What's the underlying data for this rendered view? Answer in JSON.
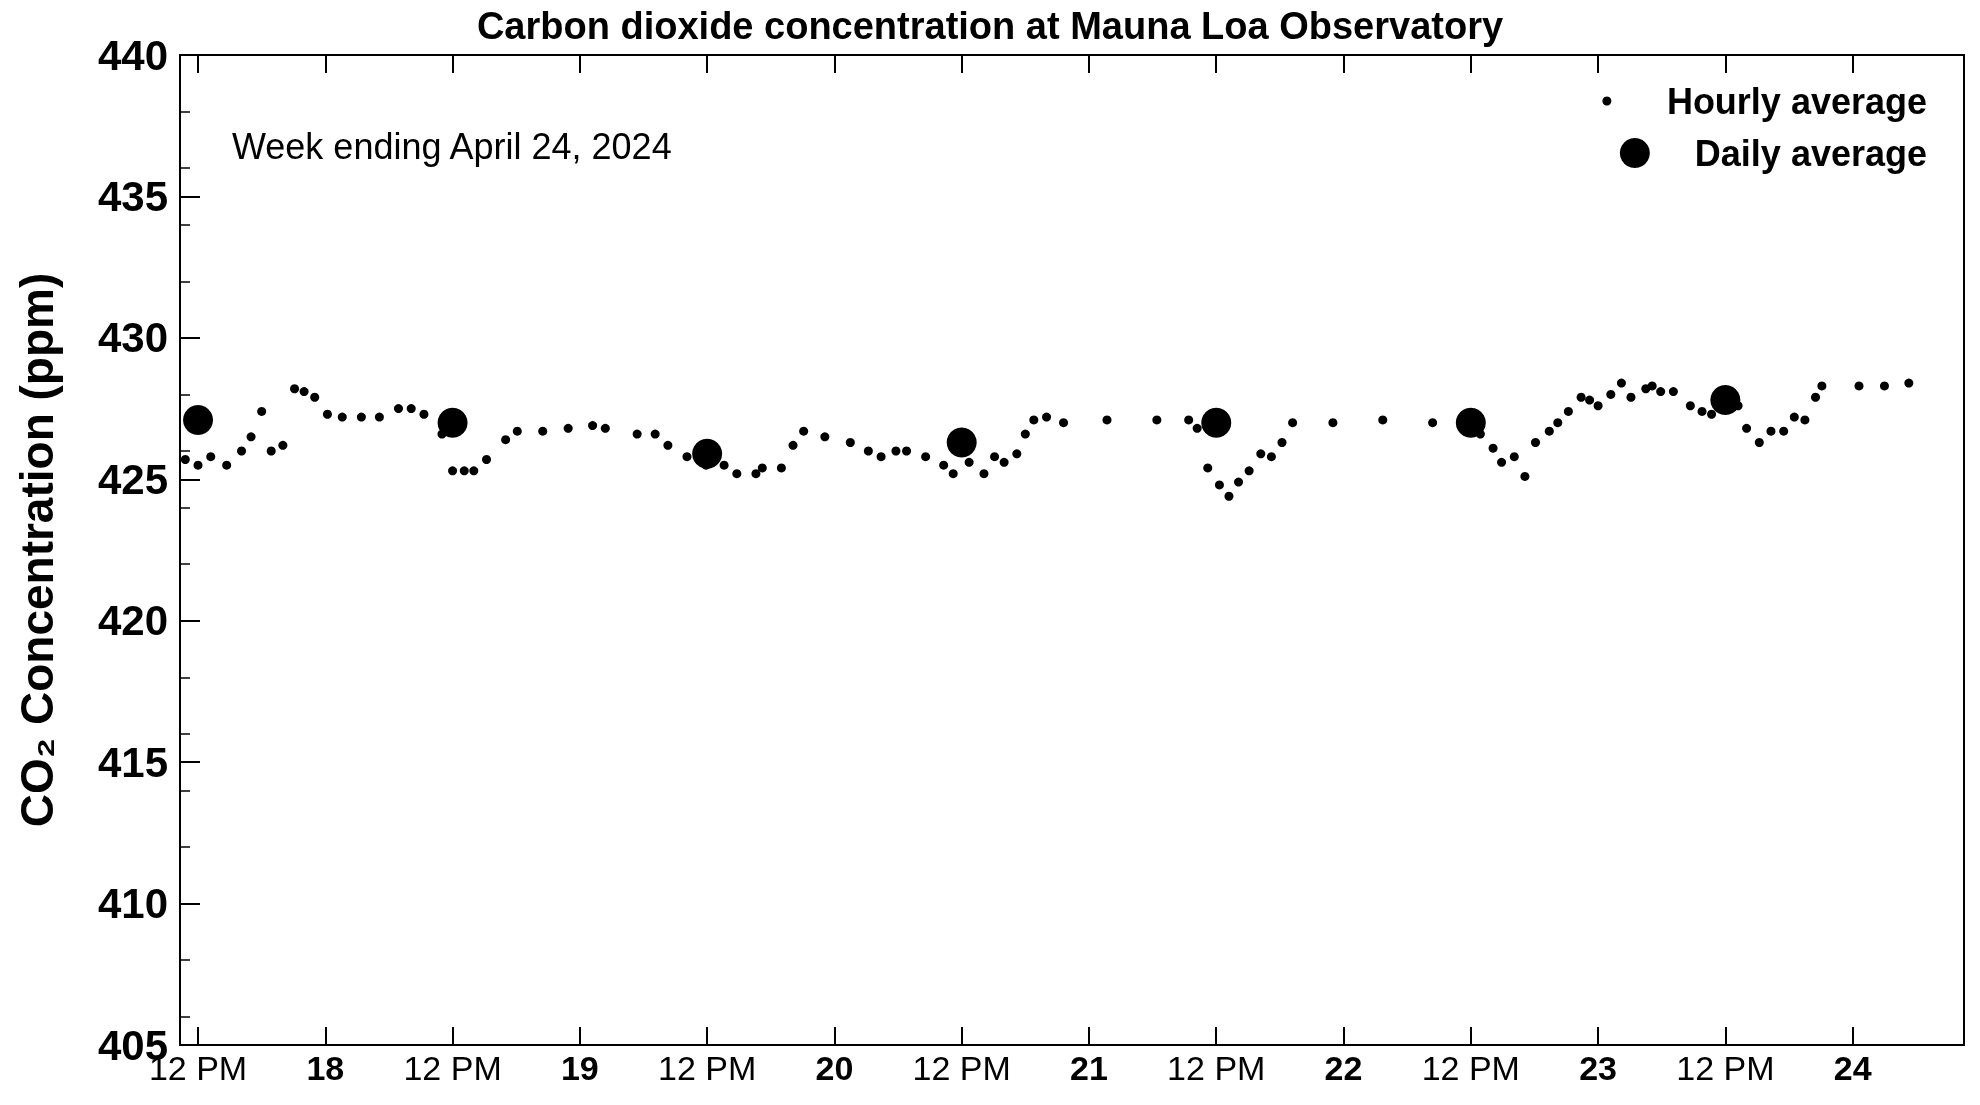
{
  "chart_data": {
    "type": "scatter",
    "title": "Carbon dioxide concentration at Mauna Loa Observatory",
    "ylabel": "CO₂ Concentration (ppm)",
    "annotations": [
      "Week ending April 24, 2024"
    ],
    "xlim": [
      "2024-04-17T10:18",
      "2024-04-24T10:30"
    ],
    "xticks": [
      {
        "value": "2024-04-17T12:00",
        "label": "12 PM"
      },
      {
        "value": "2024-04-18",
        "label": "18"
      },
      {
        "value": "2024-04-18T12:00",
        "label": "12 PM"
      },
      {
        "value": "2024-04-19",
        "label": "19"
      },
      {
        "value": "2024-04-19T12:00",
        "label": "12 PM"
      },
      {
        "value": "2024-04-20",
        "label": "20"
      },
      {
        "value": "2024-04-20T12:00",
        "label": "12 PM"
      },
      {
        "value": "2024-04-21",
        "label": "21"
      },
      {
        "value": "2024-04-21T12:00",
        "label": "12 PM"
      },
      {
        "value": "2024-04-22",
        "label": "22"
      },
      {
        "value": "2024-04-22T12:00",
        "label": "12 PM"
      },
      {
        "value": "2024-04-23",
        "label": "23"
      },
      {
        "value": "2024-04-23T12:00",
        "label": "12 PM"
      },
      {
        "value": "2024-04-24",
        "label": "24"
      }
    ],
    "ylim": [
      405,
      440
    ],
    "yticks": [
      405,
      410,
      415,
      420,
      425,
      430,
      435,
      440
    ],
    "grid": false,
    "legend": "top right",
    "marker": "circle",
    "series": [
      {
        "name": "Hourly average",
        "color": "#000000",
        "x": [
          "2024-04-17T10:48",
          "2024-04-17T12:00",
          "2024-04-17T13:12",
          "2024-04-17T14:42",
          "2024-04-17T16:06",
          "2024-04-17T17:00",
          "2024-04-17T18:00",
          "2024-04-17T18:54",
          "2024-04-17T20:00",
          "2024-04-17T21:06",
          "2024-04-17T22:00",
          "2024-04-17T23:00",
          "2024-04-18T00:12",
          "2024-04-18T01:36",
          "2024-04-18T03:24",
          "2024-04-18T05:06",
          "2024-04-18T06:54",
          "2024-04-18T08:06",
          "2024-04-18T09:18",
          "2024-04-18T11:00",
          "2024-04-18T12:00",
          "2024-04-18T13:06",
          "2024-04-18T14:00",
          "2024-04-18T15:12",
          "2024-04-18T17:00",
          "2024-04-18T18:06",
          "2024-04-18T20:30",
          "2024-04-18T22:54",
          "2024-04-19T01:12",
          "2024-04-19T02:24",
          "2024-04-19T05:24",
          "2024-04-19T07:06",
          "2024-04-19T08:18",
          "2024-04-19T10:06",
          "2024-04-19T11:54",
          "2024-04-19T13:36",
          "2024-04-19T14:48",
          "2024-04-19T16:36",
          "2024-04-19T17:12",
          "2024-04-19T19:00",
          "2024-04-19T20:06",
          "2024-04-19T21:06",
          "2024-04-19T23:06",
          "2024-04-20T01:30",
          "2024-04-20T03:12",
          "2024-04-20T04:24",
          "2024-04-20T05:48",
          "2024-04-20T06:48",
          "2024-04-20T08:36",
          "2024-04-20T10:18",
          "2024-04-20T11:12",
          "2024-04-20T12:42",
          "2024-04-20T14:06",
          "2024-04-20T15:06",
          "2024-04-20T16:00",
          "2024-04-20T17:12",
          "2024-04-20T18:00",
          "2024-04-20T18:48",
          "2024-04-20T20:00",
          "2024-04-20T21:36",
          "2024-04-21T01:42",
          "2024-04-21T06:24",
          "2024-04-21T09:24",
          "2024-04-21T10:12",
          "2024-04-21T11:12",
          "2024-04-21T12:18",
          "2024-04-21T13:12",
          "2024-04-21T14:06",
          "2024-04-21T15:06",
          "2024-04-21T16:12",
          "2024-04-21T17:12",
          "2024-04-21T18:12",
          "2024-04-21T19:12",
          "2024-04-21T23:00",
          "2024-04-22T03:42",
          "2024-04-22T08:24",
          "2024-04-22T12:54",
          "2024-04-22T14:06",
          "2024-04-22T14:54",
          "2024-04-22T16:06",
          "2024-04-22T17:06",
          "2024-04-22T18:06",
          "2024-04-22T19:24",
          "2024-04-22T20:12",
          "2024-04-22T21:12",
          "2024-04-22T22:24",
          "2024-04-22T23:12",
          "2024-04-23T00:00",
          "2024-04-23T01:12",
          "2024-04-23T02:12",
          "2024-04-23T03:06",
          "2024-04-23T04:30",
          "2024-04-23T05:06",
          "2024-04-23T05:54",
          "2024-04-23T07:06",
          "2024-04-23T08:42",
          "2024-04-23T09:48",
          "2024-04-23T10:42",
          "2024-04-23T13:12",
          "2024-04-23T14:00",
          "2024-04-23T15:12",
          "2024-04-23T16:18",
          "2024-04-23T17:30",
          "2024-04-23T18:30",
          "2024-04-23T19:30",
          "2024-04-23T20:30",
          "2024-04-23T21:06",
          "2024-04-24T00:36",
          "2024-04-24T03:00",
          "2024-04-24T05:18"
        ],
        "values": [
          425.7,
          425.5,
          425.8,
          425.5,
          426.0,
          426.5,
          427.4,
          426.0,
          426.2,
          428.2,
          428.1,
          427.9,
          427.3,
          427.2,
          427.2,
          427.2,
          427.5,
          427.5,
          427.3,
          426.6,
          425.3,
          425.3,
          425.3,
          425.7,
          426.4,
          426.7,
          426.7,
          426.8,
          426.9,
          426.8,
          426.6,
          426.6,
          426.2,
          425.8,
          425.5,
          425.5,
          425.2,
          425.2,
          425.4,
          425.4,
          426.2,
          426.7,
          426.5,
          426.3,
          426.0,
          425.8,
          426.0,
          426.0,
          425.8,
          425.5,
          425.2,
          425.6,
          425.2,
          425.8,
          425.6,
          425.9,
          426.6,
          427.1,
          427.2,
          427.0,
          427.1,
          427.1,
          427.1,
          426.8,
          425.4,
          424.8,
          424.4,
          424.9,
          425.3,
          425.9,
          425.8,
          426.3,
          427.0,
          427.0,
          427.1,
          427.0,
          426.6,
          426.1,
          425.6,
          425.8,
          425.1,
          426.3,
          426.7,
          427.0,
          427.4,
          427.9,
          427.8,
          427.6,
          428.0,
          428.4,
          427.9,
          428.2,
          428.3,
          428.1,
          428.1,
          427.6,
          427.4,
          427.3,
          427.6,
          426.8,
          426.3,
          426.7,
          426.7,
          427.2,
          427.1,
          427.9,
          428.3,
          428.3,
          428.3,
          428.4
        ]
      },
      {
        "name": "Daily average",
        "color": "#000000",
        "x": [
          "2024-04-17T12:00",
          "2024-04-18T12:00",
          "2024-04-19T12:00",
          "2024-04-20T12:00",
          "2024-04-21T12:00",
          "2024-04-22T12:00",
          "2024-04-23T12:00"
        ],
        "values": [
          427.1,
          427.0,
          425.9,
          426.3,
          427.0,
          427.0,
          427.8
        ]
      }
    ]
  }
}
